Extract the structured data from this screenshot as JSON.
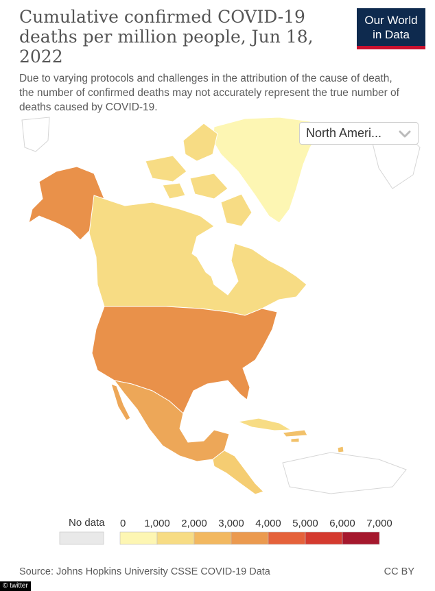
{
  "title": "Cumulative confirmed COVID-19 deaths per million people, Jun 18, 2022",
  "subtitle": "Due to varying protocols and challenges in the attribution of the cause of death, the number of confirmed deaths may not accurately represent the true number of deaths caused by COVID-19.",
  "logo": {
    "line1": "Our World",
    "line2": "in Data",
    "bg": "#0e2a4e",
    "accent": "#c8102e"
  },
  "region_select": {
    "value": "North Ameri...",
    "icon": "chevron-down-icon"
  },
  "legend": {
    "no_data_label": "No data",
    "no_data_color": "#e9e9e9",
    "ticks": [
      "0",
      "1,000",
      "2,000",
      "3,000",
      "4,000",
      "5,000",
      "6,000",
      "7,000"
    ],
    "colors": [
      "#fdf6b3",
      "#f7dc84",
      "#f2b860",
      "#eb9a4f",
      "#e5623b",
      "#d43a2f",
      "#a5182d"
    ]
  },
  "map_colors": {
    "usa": "#e9914a",
    "alaska": "#e9914a",
    "canada": "#f7dc84",
    "greenland": "#fdf6b3",
    "mexico": "#eda758",
    "central_america": "#f5cd72",
    "cuba": "#f7dc84",
    "caribbean": "#f2c16a",
    "outside": "#ffffff"
  },
  "footer": {
    "source": "Source: Johns Hopkins University CSSE COVID-19 Data",
    "license": "CC BY"
  },
  "watermark": "© twitter"
}
